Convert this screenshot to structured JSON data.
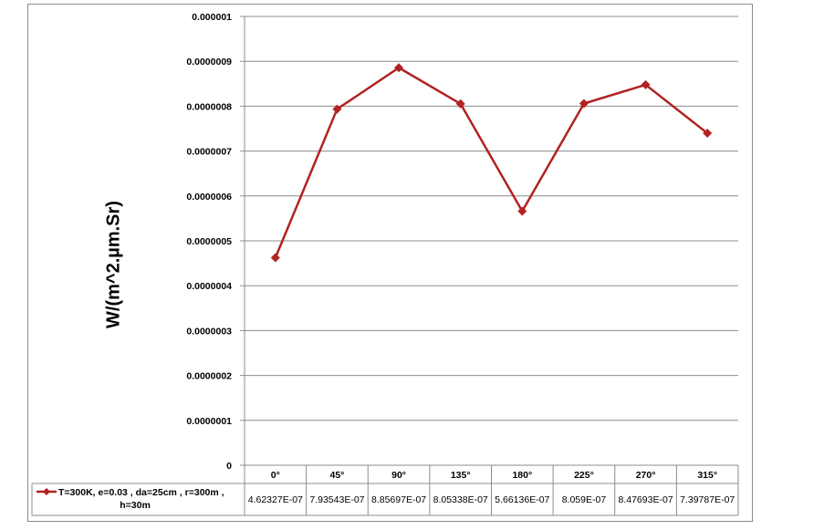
{
  "chart_data": {
    "type": "line",
    "categories": [
      "0°",
      "45°",
      "90°",
      "135°",
      "180°",
      "225°",
      "270°",
      "315°"
    ],
    "series": [
      {
        "name": "T=300K, e=0.03 , da=25cm , r=300m , h=30m",
        "values": [
          4.62327e-07,
          7.93543e-07,
          8.85697e-07,
          8.05338e-07,
          5.66136e-07,
          8.059e-07,
          8.47693e-07,
          7.39787e-07
        ],
        "value_labels": [
          "4.62327E-07",
          "7.93543E-07",
          "8.85697E-07",
          "8.05338E-07",
          "5.66136E-07",
          "8.059E-07",
          "8.47693E-07",
          "7.39787E-07"
        ],
        "color": "#b22222"
      }
    ],
    "ylabel": "W/(m^2.µm.Sr)",
    "ylim": [
      0,
      1e-06
    ],
    "yticks": [
      0,
      1e-07,
      2e-07,
      3e-07,
      4e-07,
      5e-07,
      6e-07,
      7e-07,
      8e-07,
      9e-07,
      1e-06
    ],
    "ytick_labels": [
      "0",
      "0.0000001",
      "0.0000002",
      "0.0000003",
      "0.0000004",
      "0.0000005",
      "0.0000006",
      "0.0000007",
      "0.0000008",
      "0.0000009",
      "0.000001"
    ],
    "grid": true,
    "legend": "data-table"
  }
}
